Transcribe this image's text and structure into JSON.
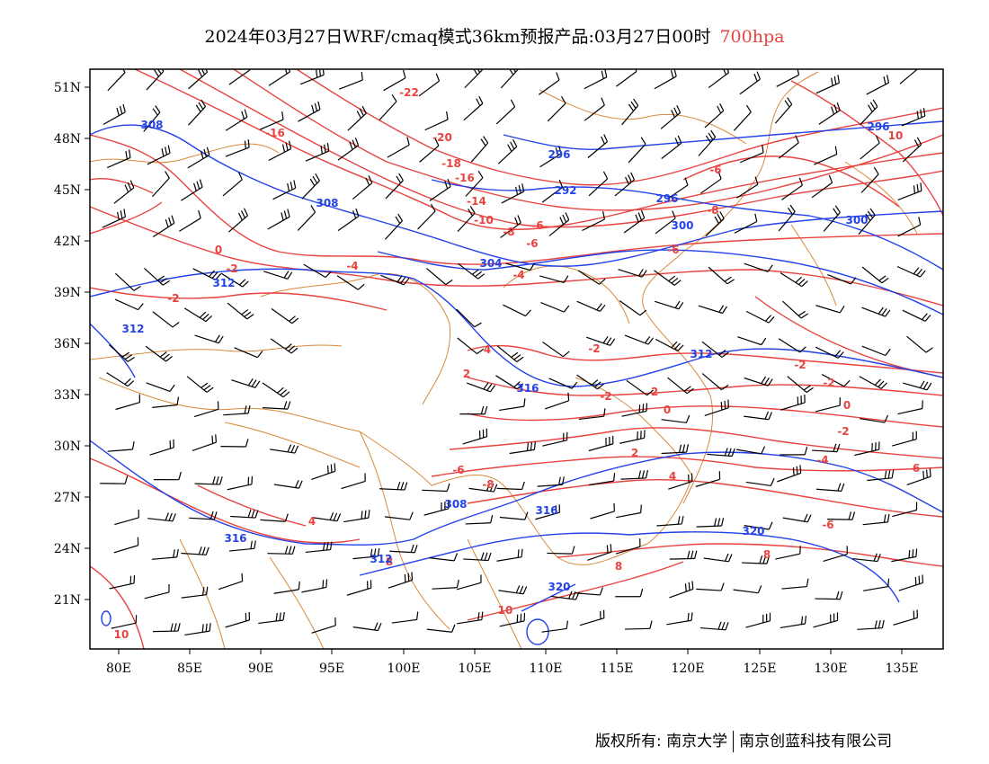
{
  "header": {
    "title": "2024年03月27日WRF/cmaq模式36km预报产品:03月27日00时",
    "level": "700hpa"
  },
  "axes": {
    "lon_ticks": [
      "80E",
      "85E",
      "90E",
      "95E",
      "100E",
      "105E",
      "110E",
      "115E",
      "120E",
      "125E",
      "130E",
      "135E"
    ],
    "lat_ticks": [
      "51N",
      "48N",
      "45N",
      "42N",
      "39N",
      "36N",
      "33N",
      "30N",
      "27N",
      "24N",
      "21N"
    ]
  },
  "colors": {
    "temperature": "#e8433f",
    "height": "#2342e8",
    "boundary": "#d9883a",
    "wind": "#000000"
  },
  "contours": {
    "temperature_labels": [
      "-22",
      "-20",
      "-18",
      "-16",
      "-14",
      "-10",
      "-8",
      "-6",
      "-6",
      "-4",
      "-4",
      "-2",
      "-2",
      "0",
      "2",
      "4",
      "-2",
      "-2",
      "2",
      "0",
      "2",
      "4",
      "6",
      "8",
      "8",
      "10",
      "10",
      "-16",
      "-6",
      "-8",
      "-6",
      "-2",
      "-2",
      "0",
      "-2",
      "-4",
      "-6",
      "8",
      "-6",
      "-8",
      "4",
      "10"
    ],
    "height_labels": [
      "308",
      "296",
      "292",
      "296",
      "300",
      "300",
      "304",
      "308",
      "312",
      "312",
      "312",
      "308",
      "316",
      "312",
      "316",
      "316",
      "320",
      "320",
      "296"
    ]
  },
  "footer": {
    "copyright": "版权所有: 南京大学",
    "company": "南京创蓝科技有限公司"
  }
}
